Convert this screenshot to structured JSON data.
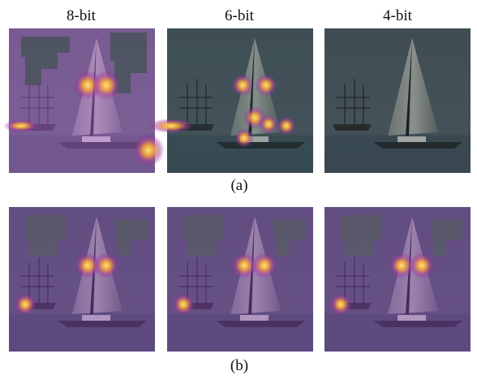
{
  "columns": [
    "8-bit",
    "6-bit",
    "4-bit"
  ],
  "captions": [
    "(a)",
    "(b)"
  ]
}
